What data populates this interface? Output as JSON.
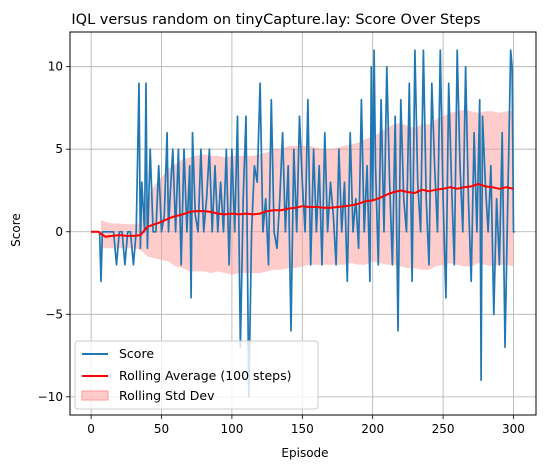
{
  "chart_data": {
    "type": "line",
    "title": "IQL versus random on tinyCapture.lay: Score Over Steps",
    "xlabel": "Episode",
    "ylabel": "Score",
    "xlim": [
      -15,
      316
    ],
    "ylim": [
      -11.1,
      12.1
    ],
    "grid": true,
    "legend_position": "lower-left",
    "x_ticks": [
      0,
      50,
      100,
      150,
      200,
      250,
      300
    ],
    "y_ticks": [
      -10,
      -5,
      0,
      5,
      10
    ],
    "x_tick_labels": [
      "0",
      "50",
      "100",
      "150",
      "200",
      "250",
      "300"
    ],
    "y_tick_labels": [
      "−10",
      "−5",
      "0",
      "5",
      "10"
    ],
    "legend": [
      "Score",
      "Rolling Average (100 steps)",
      "Rolling Std Dev"
    ],
    "colors": {
      "score": "#1f77b4",
      "average": "#ff0000",
      "band": "#ff9999"
    },
    "series": [
      {
        "name": "Score",
        "x": [
          0,
          3,
          6,
          7,
          8,
          10,
          12,
          14,
          16,
          18,
          20,
          22,
          24,
          26,
          28,
          30,
          32,
          34,
          35,
          36,
          38,
          39,
          40,
          42,
          44,
          46,
          48,
          50,
          52,
          54,
          55,
          56,
          58,
          60,
          62,
          64,
          66,
          68,
          70,
          71,
          72,
          74,
          76,
          78,
          80,
          82,
          84,
          86,
          88,
          90,
          92,
          94,
          96,
          98,
          100,
          102,
          104,
          106,
          108,
          110,
          112,
          114,
          116,
          118,
          120,
          122,
          124,
          126,
          128,
          130,
          132,
          134,
          136,
          138,
          140,
          142,
          144,
          146,
          148,
          150,
          152,
          154,
          156,
          158,
          160,
          162,
          164,
          166,
          168,
          170,
          172,
          174,
          176,
          178,
          180,
          182,
          184,
          186,
          188,
          190,
          192,
          194,
          196,
          198,
          199,
          200,
          201,
          202,
          204,
          206,
          208,
          210,
          212,
          214,
          216,
          218,
          220,
          222,
          224,
          226,
          228,
          230,
          232,
          234,
          236,
          238,
          240,
          242,
          244,
          246,
          248,
          250,
          252,
          254,
          256,
          258,
          260,
          262,
          264,
          266,
          268,
          270,
          272,
          274,
          276,
          277,
          278,
          280,
          282,
          284,
          286,
          288,
          290,
          292,
          294,
          296,
          298,
          299,
          300,
          301
        ],
        "y": [
          0,
          0,
          0,
          -3,
          0,
          0,
          0,
          0,
          0,
          -2,
          0,
          0,
          -2,
          0,
          0,
          -2,
          0,
          9,
          -1,
          3,
          0,
          9,
          -1,
          5,
          0,
          0,
          4,
          0,
          1,
          6,
          0,
          2,
          5,
          0,
          5,
          -2,
          5,
          0,
          4,
          -4,
          6,
          1,
          0,
          5,
          0,
          2,
          5,
          0,
          4,
          0,
          3,
          0,
          5,
          -2,
          5,
          0,
          7,
          -7,
          2,
          7,
          -10,
          0,
          4,
          3,
          9,
          0,
          2,
          -2,
          8,
          0,
          -1,
          2,
          6,
          0,
          4,
          -6,
          5,
          0,
          7,
          3,
          0,
          8,
          -2,
          5,
          0,
          4,
          -2,
          6,
          0,
          3,
          1,
          -2,
          5,
          0,
          3,
          -3,
          6,
          0,
          2,
          -1,
          8,
          0,
          4,
          -3,
          10,
          2,
          11,
          4,
          -2,
          8,
          0,
          10,
          3,
          -2,
          7,
          -6,
          8,
          2,
          0,
          9,
          -3,
          11,
          3,
          0,
          11,
          2,
          -2,
          9,
          4,
          0,
          11,
          2,
          -4,
          9,
          3,
          -2,
          11,
          4,
          0,
          10,
          2,
          -3,
          6,
          0,
          8,
          -9,
          7,
          3,
          0,
          4,
          -5,
          2,
          -2,
          6,
          -7,
          2,
          11,
          10,
          0,
          0
        ]
      },
      {
        "name": "Rolling Average (100 steps)",
        "x": [
          0,
          5,
          10,
          15,
          20,
          25,
          30,
          35,
          40,
          45,
          50,
          55,
          60,
          65,
          70,
          75,
          80,
          85,
          90,
          95,
          100,
          105,
          110,
          115,
          120,
          125,
          130,
          135,
          140,
          145,
          150,
          155,
          160,
          165,
          170,
          175,
          180,
          185,
          190,
          195,
          200,
          205,
          210,
          215,
          220,
          225,
          230,
          235,
          240,
          245,
          250,
          255,
          260,
          265,
          270,
          275,
          280,
          285,
          290,
          295,
          300
        ],
        "y": [
          0.0,
          0.0,
          -0.3,
          -0.25,
          -0.2,
          -0.25,
          -0.25,
          -0.2,
          0.3,
          0.45,
          0.6,
          0.8,
          0.95,
          1.05,
          1.2,
          1.25,
          1.25,
          1.2,
          1.1,
          1.05,
          1.1,
          1.05,
          1.1,
          1.05,
          1.1,
          1.25,
          1.3,
          1.3,
          1.4,
          1.45,
          1.55,
          1.5,
          1.5,
          1.45,
          1.45,
          1.5,
          1.55,
          1.6,
          1.7,
          1.85,
          1.9,
          2.05,
          2.25,
          2.4,
          2.5,
          2.4,
          2.35,
          2.55,
          2.45,
          2.55,
          2.6,
          2.7,
          2.6,
          2.7,
          2.75,
          2.9,
          2.75,
          2.7,
          2.6,
          2.7,
          2.6
        ]
      },
      {
        "name": "Rolling Std Dev",
        "x": [
          7,
          10,
          15,
          20,
          25,
          30,
          35,
          40,
          45,
          50,
          55,
          60,
          65,
          70,
          75,
          80,
          85,
          90,
          95,
          100,
          105,
          110,
          115,
          120,
          125,
          130,
          135,
          140,
          145,
          150,
          155,
          160,
          165,
          170,
          175,
          180,
          185,
          190,
          195,
          200,
          205,
          210,
          215,
          220,
          225,
          230,
          235,
          240,
          245,
          250,
          255,
          260,
          265,
          270,
          275,
          280,
          285,
          290,
          295,
          300
        ],
        "lower": [
          -0.9,
          -1.0,
          -1.0,
          -1.0,
          -1.0,
          -1.0,
          -1.1,
          -1.5,
          -1.6,
          -1.7,
          -1.8,
          -2.1,
          -2.2,
          -2.4,
          -2.4,
          -2.4,
          -2.5,
          -2.4,
          -2.5,
          -2.6,
          -2.5,
          -2.5,
          -2.5,
          -2.5,
          -2.4,
          -2.3,
          -2.3,
          -2.2,
          -2.2,
          -2.1,
          -2.0,
          -2.0,
          -2.0,
          -2.0,
          -2.0,
          -2.0,
          -1.9,
          -2.0,
          -2.0,
          -1.8,
          -1.9,
          -2.0,
          -2.0,
          -2.1,
          -2.2,
          -2.2,
          -2.3,
          -2.3,
          -2.1,
          -2.0,
          -1.9,
          -2.0,
          -2.1,
          -2.1,
          -1.9,
          -2.0,
          -2.1,
          -2.0,
          -2.0,
          -2.1
        ],
        "upper": [
          0.7,
          0.6,
          0.5,
          0.5,
          0.45,
          0.45,
          0.5,
          2.1,
          2.8,
          3.3,
          3.8,
          4.1,
          4.4,
          4.5,
          4.6,
          4.7,
          4.6,
          4.6,
          4.5,
          4.6,
          4.6,
          4.6,
          4.6,
          4.7,
          4.8,
          5.0,
          5.0,
          5.2,
          5.2,
          5.2,
          5.2,
          5.1,
          5.0,
          5.0,
          5.1,
          5.2,
          5.3,
          5.4,
          5.6,
          5.8,
          6.0,
          6.3,
          6.5,
          6.6,
          6.4,
          6.3,
          6.5,
          6.5,
          6.8,
          7.0,
          7.2,
          7.3,
          7.4,
          7.3,
          7.2,
          7.3,
          7.3,
          7.2,
          7.3,
          7.3
        ]
      }
    ]
  }
}
